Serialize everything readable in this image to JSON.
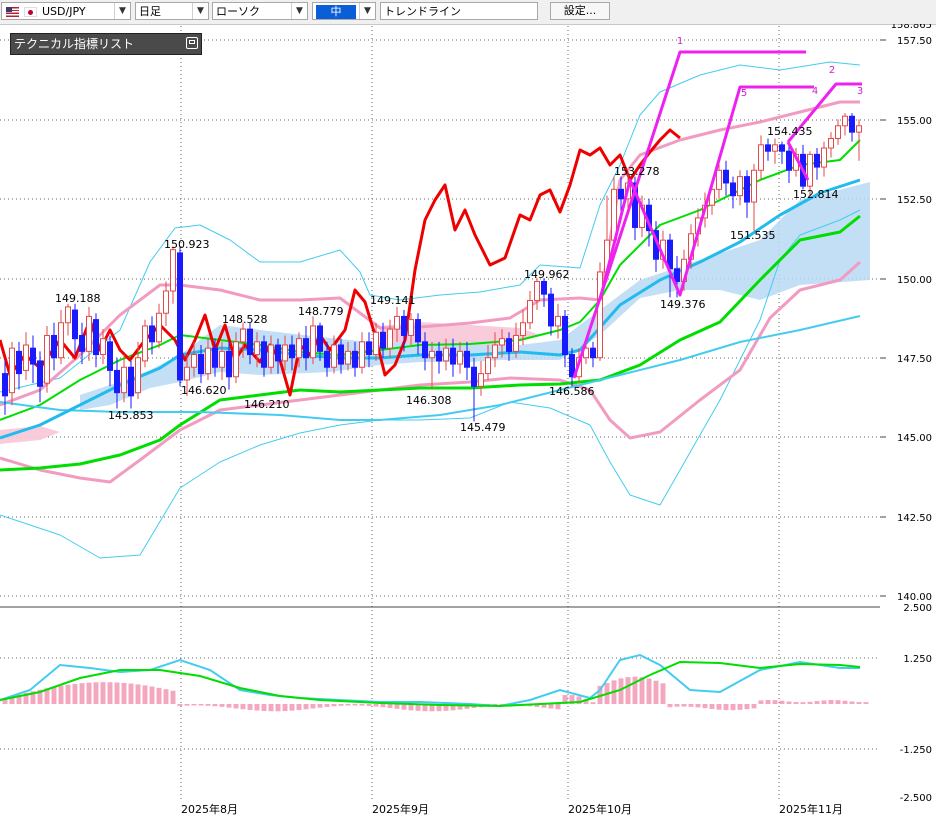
{
  "toolbar": {
    "pair": "USD/JPY",
    "timeframe": "日足",
    "chart_style": "ローソク",
    "draw_mode": "中",
    "draw_tool": "トレンドライン",
    "settings_label": "設定..."
  },
  "indicator_panel": {
    "title": "テクニカル指標リスト"
  },
  "colors": {
    "up_candle": "#e34a4a",
    "down_candle": "#1a1aff",
    "rsi_line": "#ee0000",
    "trendline": "#ee22ee",
    "cloud": "#b9d9f5",
    "cloud_pink": "#f8c6d8",
    "bollinger_outer": "#44ccee",
    "bollinger_mid": "#f29bc0",
    "ma_short": "#00dd00",
    "ma_long": "#22bbee",
    "macd_hist": "#f4a8bf"
  },
  "chart_data": [
    {
      "type": "candlestick",
      "y_ticks": [
        "157.50",
        "155.00",
        "152.50",
        "150.00",
        "147.50",
        "145.00",
        "142.50",
        "140.00"
      ],
      "y_top_partial": "158.865",
      "ylim": [
        139.5,
        158.9
      ],
      "x_ticks": [
        "2025年8月",
        "2025年9月",
        "2025年10月",
        "2025年11月"
      ],
      "annotations": [
        {
          "label": "150.923",
          "value": 150.923
        },
        {
          "label": "149.188",
          "value": 149.188
        },
        {
          "label": "148.528",
          "value": 148.528
        },
        {
          "label": "148.779",
          "value": 148.779
        },
        {
          "label": "149.141",
          "value": 149.141
        },
        {
          "label": "149.962",
          "value": 149.962
        },
        {
          "label": "153.278",
          "value": 153.278
        },
        {
          "label": "154.435",
          "value": 154.435
        },
        {
          "label": "152.814",
          "value": 152.814
        },
        {
          "label": "151.535",
          "value": 151.535
        },
        {
          "label": "149.376",
          "value": 149.376
        },
        {
          "label": "146.620",
          "value": 146.62
        },
        {
          "label": "146.210",
          "value": 146.21
        },
        {
          "label": "146.308",
          "value": 146.308
        },
        {
          "label": "146.586",
          "value": 146.586
        },
        {
          "label": "145.853",
          "value": 145.853
        },
        {
          "label": "145.479",
          "value": 145.479
        }
      ],
      "trendline_labels": [
        "1",
        "2",
        "3",
        "4",
        "5"
      ]
    },
    {
      "type": "bar",
      "y_ticks": [
        "2.500",
        "1.250",
        "-1.250",
        "-2.500"
      ],
      "ylim": [
        -2.5,
        2.5
      ]
    }
  ]
}
